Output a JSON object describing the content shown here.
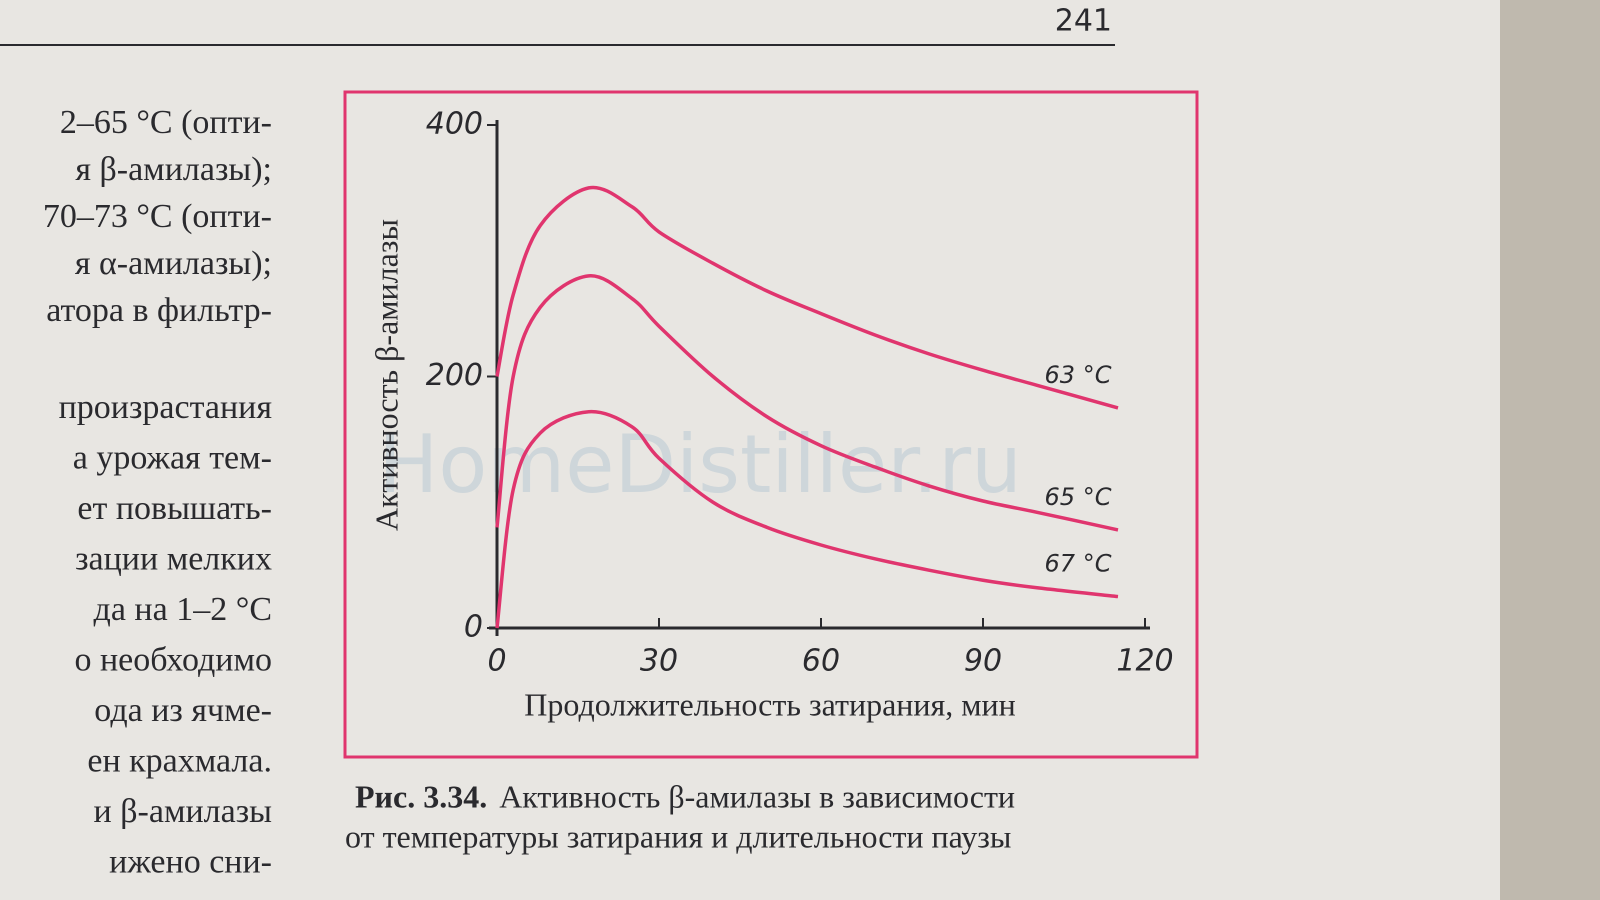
{
  "page_number": "241",
  "left_text": [
    "2–65 °C (опти-",
    "я β-амилазы);",
    "70–73 °C (опти-",
    "я α-амилазы);",
    "атора в фильтр-",
    "произрастания",
    "а урожая тем-",
    "ет повышать-",
    "зации мелких",
    "да на 1–2 °C",
    "о необходимо",
    "ода из ячме-",
    "ен крахмала.",
    "и β-амилазы",
    "ижено сни-"
  ],
  "watermark": "HomeDistiller.ru",
  "chart_data": {
    "type": "line",
    "ylabel": "Активность β-амилазы",
    "xlabel": "Продолжительность затирания, мин",
    "x": [
      0,
      3,
      8,
      17,
      25,
      30,
      40,
      50,
      60,
      70,
      80,
      90,
      100,
      115
    ],
    "series": [
      {
        "name": "63 °C",
        "color": "#e0356e",
        "values": [
          200,
          265,
          320,
          350,
          335,
          315,
          290,
          268,
          250,
          233,
          218,
          205,
          193,
          175
        ]
      },
      {
        "name": "65 °C",
        "color": "#e0356e",
        "values": [
          80,
          200,
          255,
          280,
          262,
          240,
          200,
          168,
          145,
          128,
          113,
          101,
          92,
          78
        ]
      },
      {
        "name": "67 °C",
        "color": "#e0356e",
        "values": [
          0,
          110,
          155,
          172,
          160,
          135,
          100,
          80,
          66,
          55,
          46,
          38,
          32,
          25
        ]
      }
    ],
    "xlim": [
      0,
      120
    ],
    "xticks": [
      0,
      30,
      60,
      90,
      120
    ],
    "ylim": [
      0,
      400
    ],
    "yticks": [
      0,
      200,
      400
    ],
    "grid": false
  },
  "caption": {
    "label": "Рис. 3.34.",
    "line1": "Активность β-амилазы в зависимости",
    "line2": "от температуры затирания и длительности паузы"
  }
}
